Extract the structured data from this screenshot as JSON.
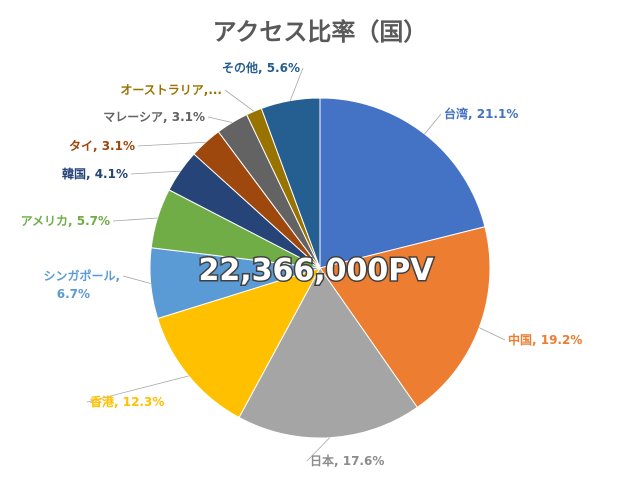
{
  "chart_data": {
    "type": "pie",
    "title": "アクセス比率（国）",
    "center_label": "22,366,000PV",
    "slices": [
      {
        "label": "台湾, 21.1%",
        "value": 21.1,
        "color": "#4472c4"
      },
      {
        "label": "中国, 19.2%",
        "value": 19.2,
        "color": "#ed7d31"
      },
      {
        "label": "日本, 17.6%",
        "value": 17.6,
        "color": "#a5a5a5"
      },
      {
        "label": "香港, 12.3%",
        "value": 12.3,
        "color": "#ffc000"
      },
      {
        "label": "シンガポール, 6.7%",
        "label_lines": [
          "シンガポール,",
          "6.7%"
        ],
        "value": 6.7,
        "color": "#5b9bd5"
      },
      {
        "label": "アメリカ, 5.7%",
        "value": 5.7,
        "color": "#70ad47"
      },
      {
        "label": "韓国, 4.1%",
        "value": 4.1,
        "color": "#264478"
      },
      {
        "label": "タイ, 3.1%",
        "value": 3.1,
        "color": "#9e480e"
      },
      {
        "label": "マレーシア, 3.1%",
        "value": 3.1,
        "color": "#636363"
      },
      {
        "label": "オーストラリア,...",
        "value": 1.5,
        "color": "#997300"
      },
      {
        "label": "その他, 5.6%",
        "value": 5.6,
        "color": "#255e91"
      }
    ]
  }
}
